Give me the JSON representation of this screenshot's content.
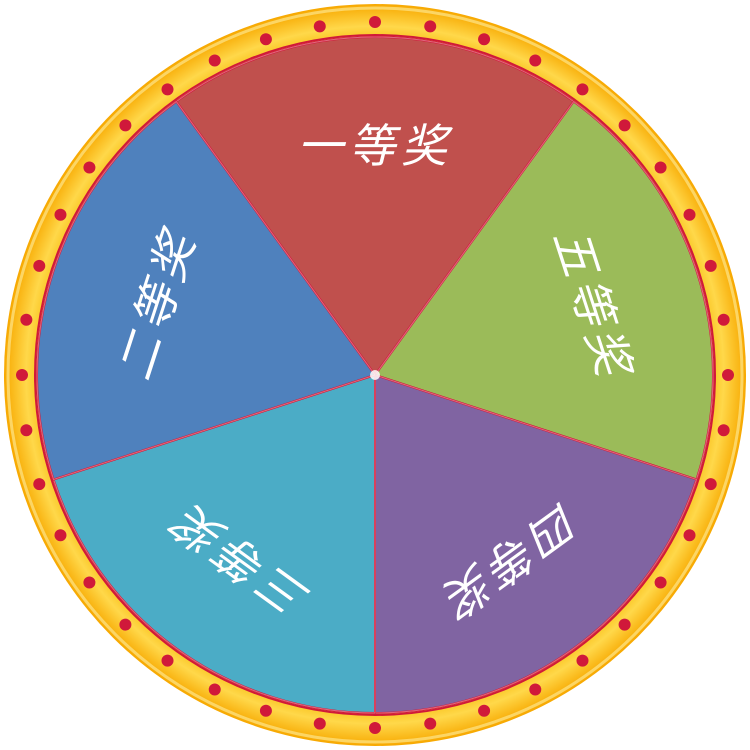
{
  "wheel": {
    "sectors": [
      {
        "label": "一等奖",
        "color": "#c0504d"
      },
      {
        "label": "五等奖",
        "color": "#9bbb59"
      },
      {
        "label": "四等奖",
        "color": "#8064a2"
      },
      {
        "label": "三等奖",
        "color": "#4bacc6"
      },
      {
        "label": "二等奖",
        "color": "#4f81bd"
      }
    ],
    "rim_color": "#f6c21c",
    "rim_light_color": "#fde68a",
    "dot_color": "#d0193a",
    "divider_color": "#d0193a",
    "dot_count": 40
  }
}
